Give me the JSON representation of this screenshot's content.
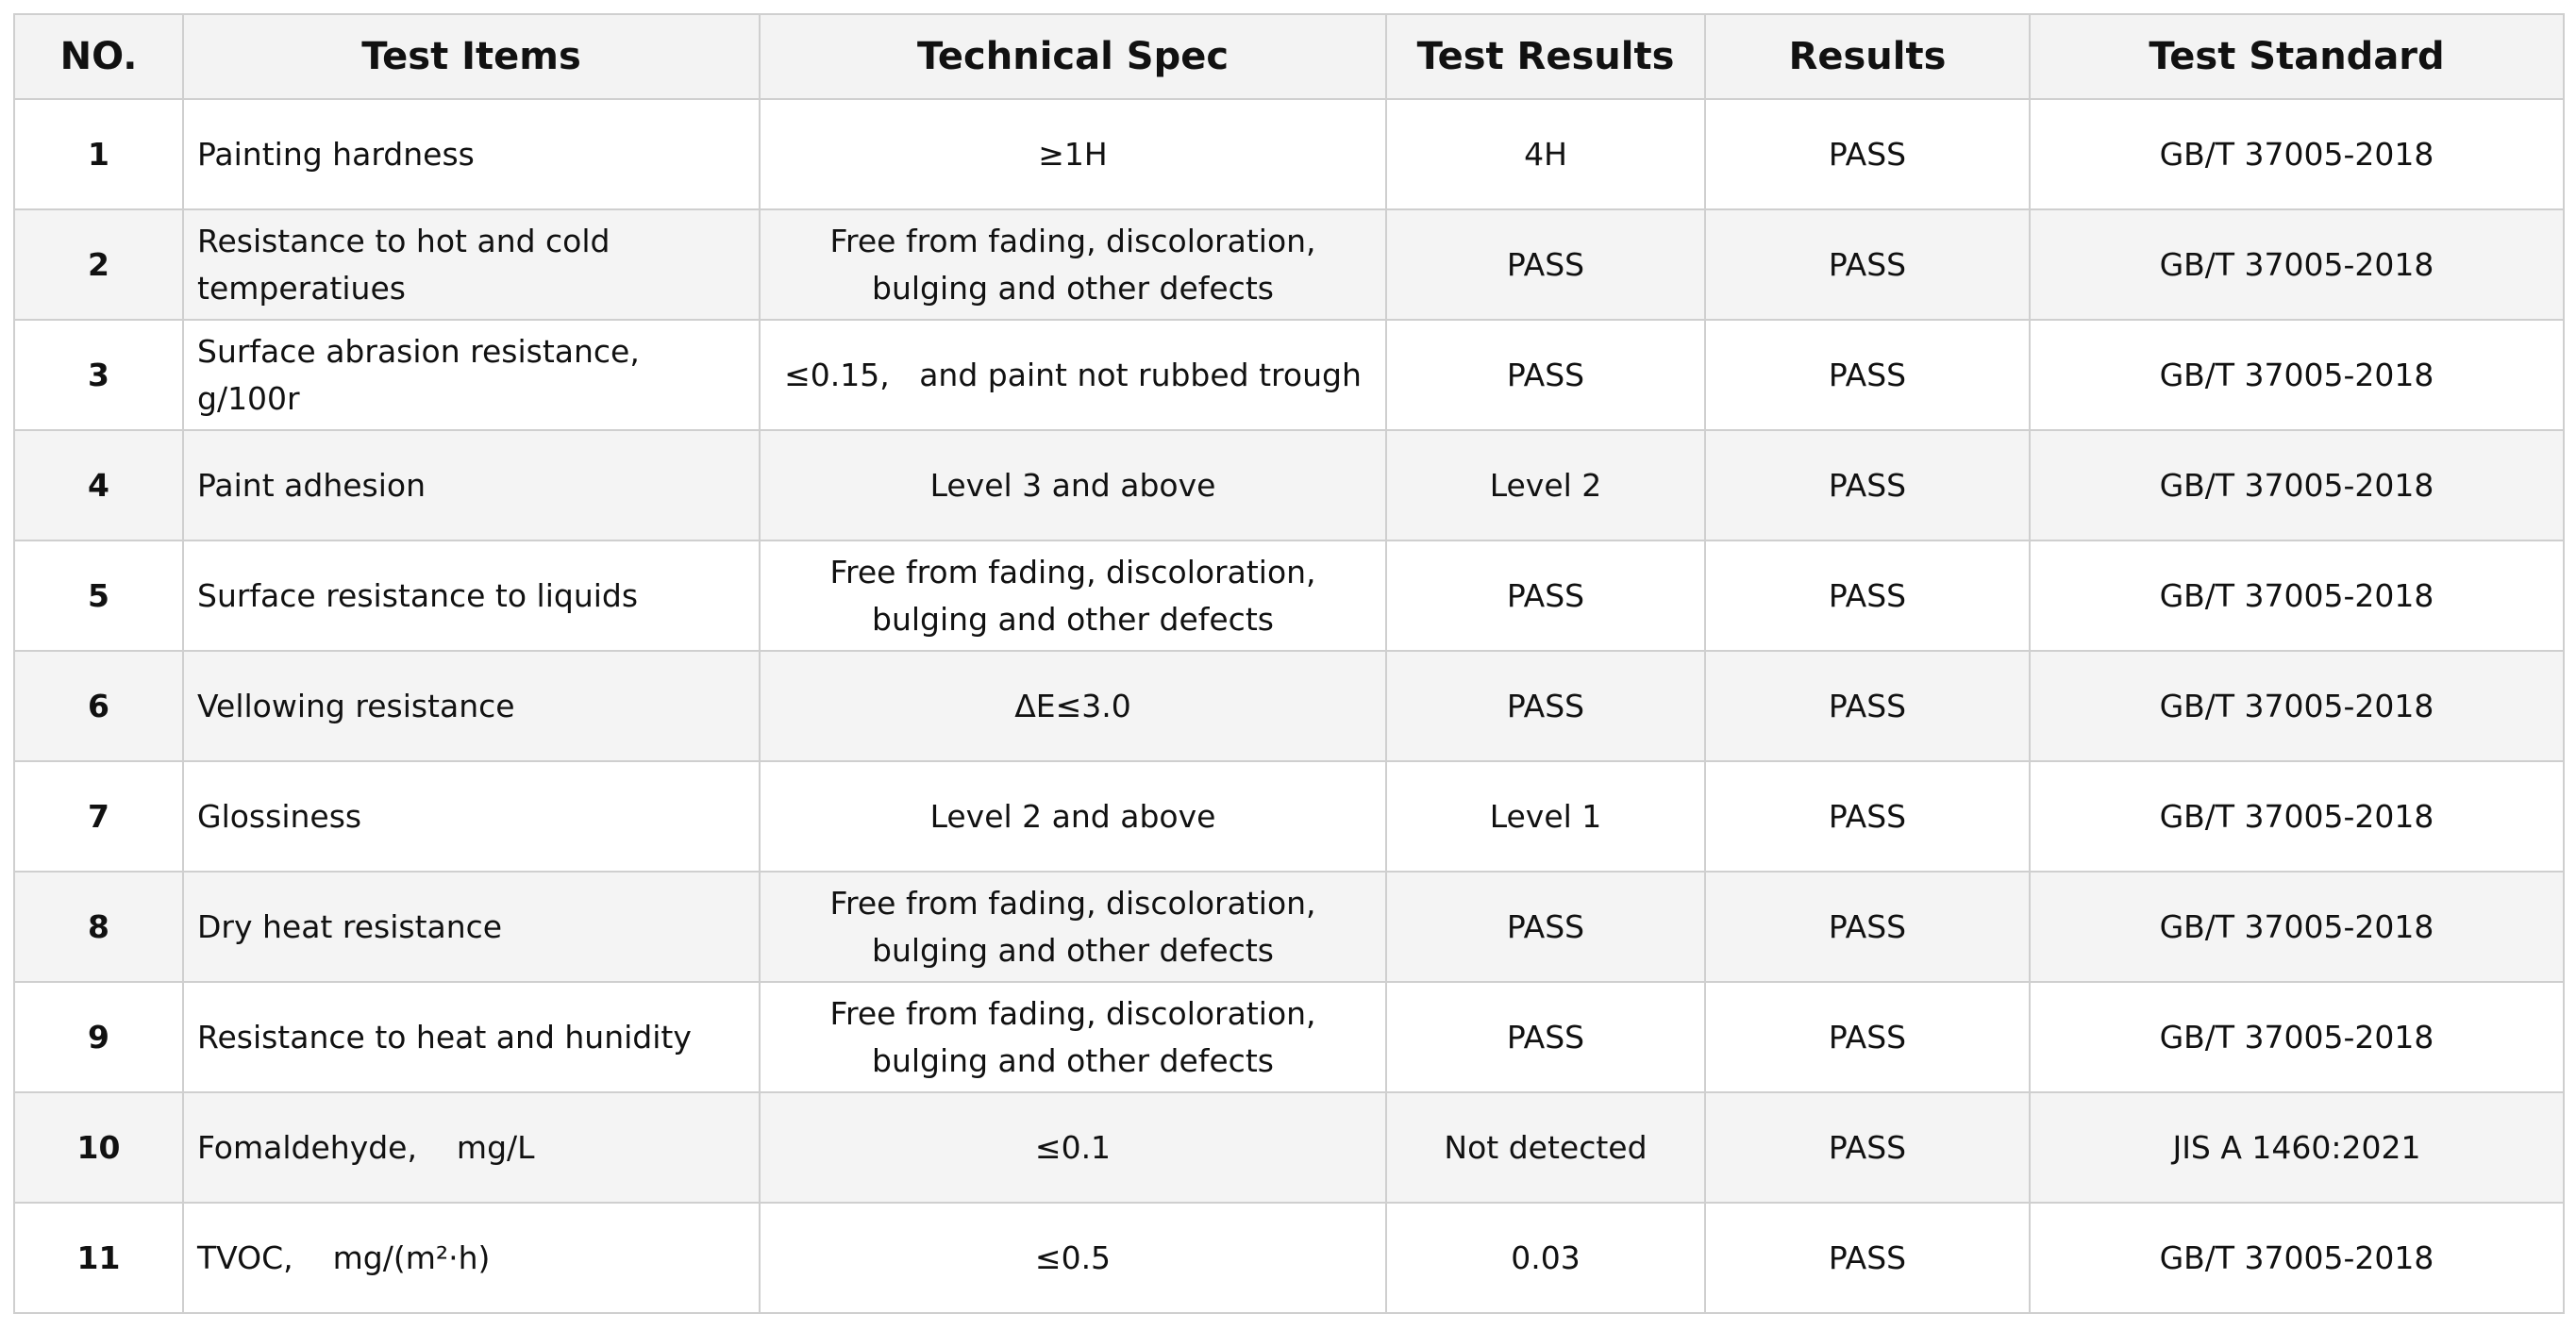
{
  "table": {
    "header": [
      "NO.",
      "Test Items",
      "Technical Spec",
      "Test Results",
      "Results",
      "Test Standard"
    ],
    "rows": [
      [
        "1",
        "Painting hardness",
        "≥1H",
        "4H",
        "PASS",
        "GB/T 37005-2018"
      ],
      [
        "2",
        "Resistance to hot and cold temperatiues",
        "Free from fading, discoloration, bulging and other defects",
        "PASS",
        "PASS",
        "GB/T 37005-2018"
      ],
      [
        "3",
        "Surface abrasion resistance,    g/100r",
        "≤0.15,   and paint not rubbed trough",
        "PASS",
        "PASS",
        "GB/T 37005-2018"
      ],
      [
        "4",
        "Paint adhesion",
        "Level 3 and above",
        "Level 2",
        "PASS",
        "GB/T 37005-2018"
      ],
      [
        "5",
        "Surface resistance to liquids",
        "Free from fading, discoloration, bulging and other defects",
        "PASS",
        "PASS",
        "GB/T 37005-2018"
      ],
      [
        "6",
        "Vellowing resistance",
        "ΔE≤3.0",
        "PASS",
        "PASS",
        "GB/T 37005-2018"
      ],
      [
        "7",
        "Glossiness",
        "Level 2 and above",
        "Level 1",
        "PASS",
        "GB/T 37005-2018"
      ],
      [
        "8",
        "Dry heat resistance",
        "Free from fading, discoloration, bulging and other defects",
        "PASS",
        "PASS",
        "GB/T 37005-2018"
      ],
      [
        "9",
        "Resistance to heat and hunidity",
        "Free from fading, discoloration, bulging and other defects",
        "PASS",
        "PASS",
        "GB/T 37005-2018"
      ],
      [
        "10",
        "Fomaldehyde,    mg/L",
        "≤0.1",
        "Not detected",
        "PASS",
        "JIS A 1460:2021"
      ],
      [
        "11",
        "TVOC,    mg/(m²·h)",
        "≤0.5",
        "0.03",
        "PASS",
        "GB/T 37005-2018"
      ]
    ]
  }
}
